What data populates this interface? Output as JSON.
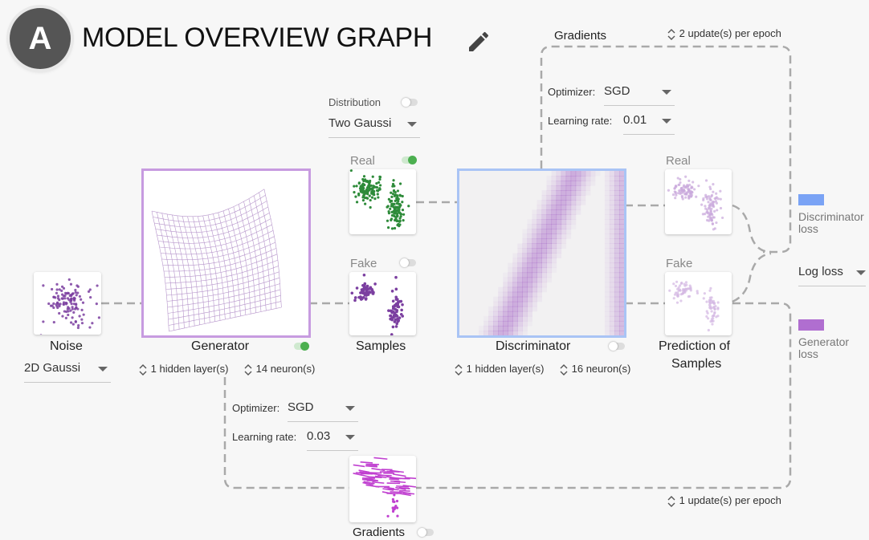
{
  "header": {
    "badge": "A",
    "title": "MODEL OVERVIEW GRAPH",
    "edit_icon": "pencil-icon"
  },
  "top_gradients": {
    "label": "Gradients",
    "updates": "2 update(s) per epoch",
    "optimizer_label": "Optimizer:",
    "optimizer_value": "SGD",
    "lr_label": "Learning rate:",
    "lr_value": "0.01"
  },
  "distribution": {
    "label": "Distribution",
    "value": "Two Gaussi"
  },
  "noise": {
    "label": "Noise",
    "value": "2D Gaussi"
  },
  "generator": {
    "label": "Generator",
    "hidden_layers": "1 hidden layer(s)",
    "neurons": "14 neuron(s)",
    "optimizer_label": "Optimizer:",
    "optimizer_value": "SGD",
    "lr_label": "Learning rate:",
    "lr_value": "0.03"
  },
  "samples": {
    "label": "Samples",
    "real_label": "Real",
    "fake_label": "Fake"
  },
  "discriminator": {
    "label": "Discriminator",
    "hidden_layers": "1 hidden layer(s)",
    "neurons": "16 neuron(s)"
  },
  "prediction": {
    "label_line1": "Prediction of",
    "label_line2": "Samples",
    "real_label": "Real",
    "fake_label": "Fake"
  },
  "bottom_gradients": {
    "label": "Gradients",
    "updates": "1 update(s) per epoch"
  },
  "legend": {
    "disc_line1": "Discriminator",
    "disc_line2": "loss",
    "loss_type": "Log loss",
    "gen_line1": "Generator",
    "gen_line2": "loss",
    "disc_color": "#7aa3f5",
    "gen_color": "#b06ed0"
  },
  "colors": {
    "purple": "#7b3fa0",
    "green": "#2e8b3a",
    "wire": "#a9a9a9",
    "gen_border": "#c79be0",
    "disc_border": "#a9c4f5"
  }
}
